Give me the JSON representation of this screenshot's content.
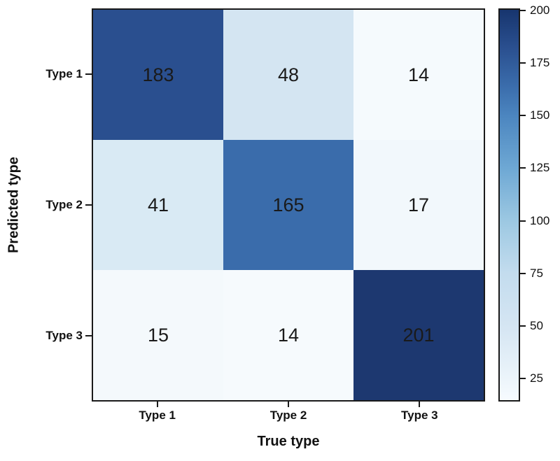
{
  "figure": {
    "background": "#ffffff",
    "border_color": "#1a1a1a"
  },
  "chart_data": {
    "type": "heatmap",
    "title": "",
    "xlabel": "True type",
    "ylabel": "Predicted type",
    "x_categories": [
      "Type 1",
      "Type 2",
      "Type 3"
    ],
    "y_categories": [
      "Type 1",
      "Type 2",
      "Type 3"
    ],
    "values": [
      [
        183,
        48,
        14
      ],
      [
        41,
        165,
        17
      ],
      [
        15,
        14,
        201
      ]
    ],
    "cell_colors": [
      [
        "#2a4f8f",
        "#d4e5f2",
        "#f5fafd"
      ],
      [
        "#d9eaf4",
        "#3a6cab",
        "#f2f8fc"
      ],
      [
        "#f4f9fc",
        "#f6fafd",
        "#1d3870"
      ]
    ],
    "value_text_color": "#1a1a1a",
    "grid": false,
    "legend_position": "right",
    "colorbar": {
      "min": 14,
      "max": 201,
      "ticks": [
        200,
        175,
        150,
        125,
        100,
        75,
        50,
        25
      ],
      "gradient_stops": [
        {
          "pos": 0,
          "color": "#17356e"
        },
        {
          "pos": 9.6,
          "color": "#2a4f8f"
        },
        {
          "pos": 19.3,
          "color": "#3a6cab"
        },
        {
          "pos": 27.3,
          "color": "#4c86c0"
        },
        {
          "pos": 40.6,
          "color": "#6ea8d4"
        },
        {
          "pos": 54.0,
          "color": "#9cc8e2"
        },
        {
          "pos": 67.4,
          "color": "#c3dcee"
        },
        {
          "pos": 81.8,
          "color": "#d6e6f3"
        },
        {
          "pos": 94.1,
          "color": "#ebf4fa"
        },
        {
          "pos": 100,
          "color": "#f7fbff"
        }
      ]
    }
  }
}
